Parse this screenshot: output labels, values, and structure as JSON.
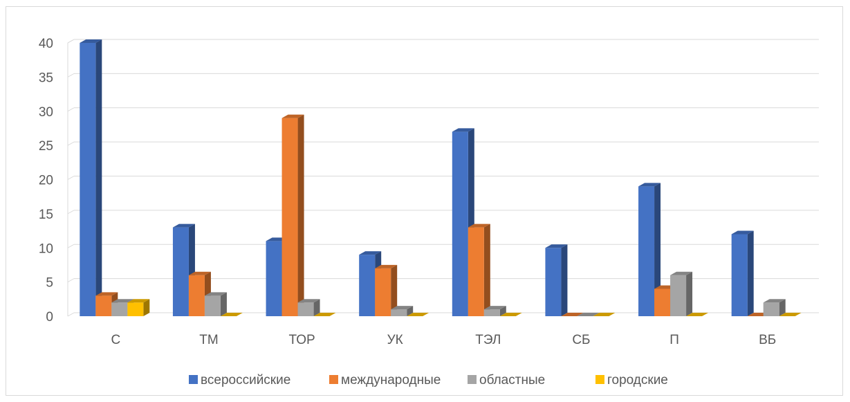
{
  "chart_data": {
    "type": "bar",
    "categories": [
      "С",
      "ТМ",
      "ТОР",
      "УК",
      "ТЭЛ",
      "СБ",
      "П",
      "ВБ"
    ],
    "series": [
      {
        "name": "всероссийские",
        "values": [
          40,
          13,
          11,
          9,
          27,
          10,
          19,
          12
        ],
        "color": "#4472C4"
      },
      {
        "name": "международные",
        "values": [
          3,
          6,
          29,
          7,
          13,
          0,
          4,
          0
        ],
        "color": "#ED7D31"
      },
      {
        "name": "областные",
        "values": [
          2,
          3,
          2,
          1,
          1,
          0,
          6,
          2
        ],
        "color": "#A5A5A5"
      },
      {
        "name": "городские",
        "values": [
          2,
          0,
          0,
          0,
          0,
          0,
          0,
          0
        ],
        "color": "#FFC000"
      }
    ],
    "yticks": [
      "0",
      "5",
      "10",
      "15",
      "20",
      "25",
      "30",
      "35",
      "40"
    ],
    "ylim": [
      0,
      40
    ],
    "grid": true,
    "legend_position": "bottom",
    "title": "",
    "xlabel": "",
    "ylabel": ""
  }
}
